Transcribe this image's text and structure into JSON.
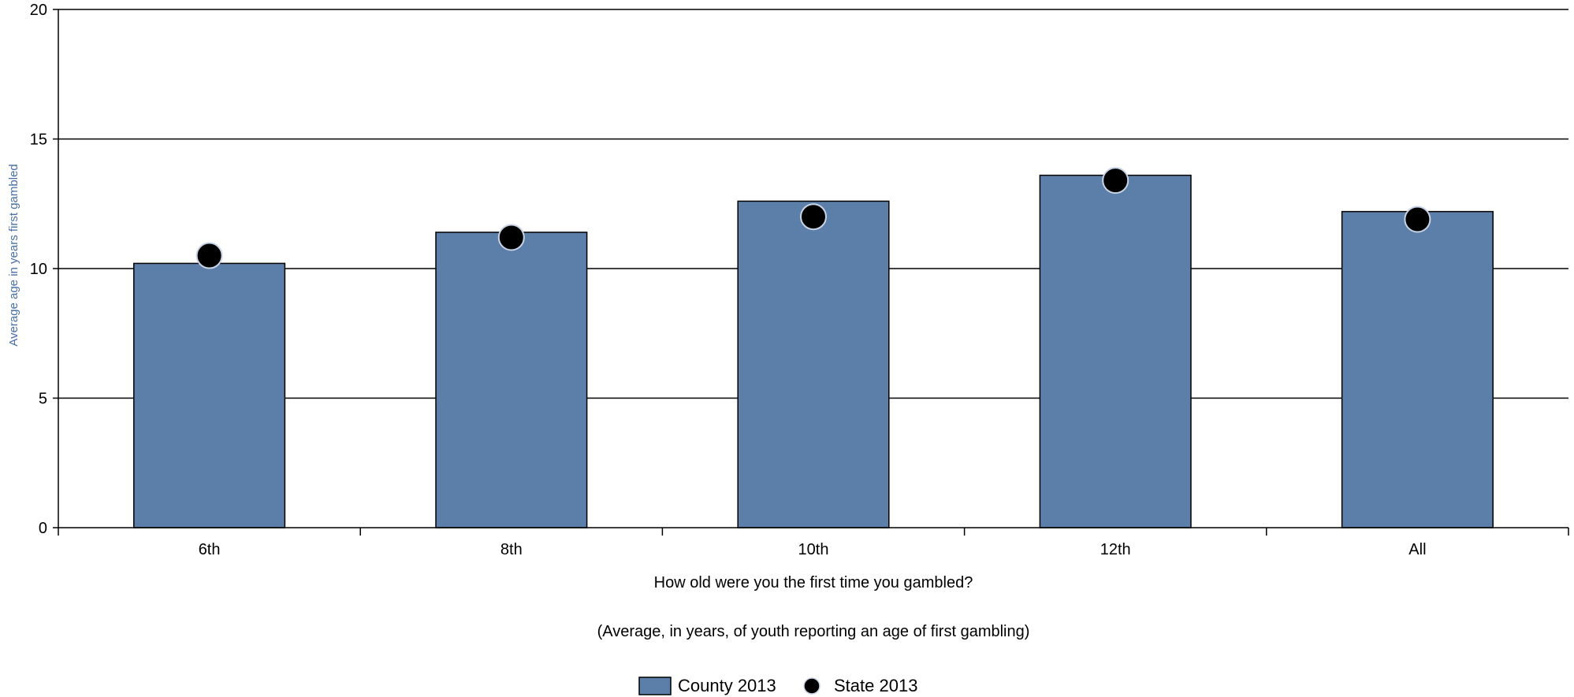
{
  "chart_data": {
    "type": "bar",
    "categories": [
      "6th",
      "8th",
      "10th",
      "12th",
      "All"
    ],
    "series": [
      {
        "name": "County 2013",
        "kind": "bar",
        "values": [
          10.2,
          11.4,
          12.6,
          13.6,
          12.2
        ],
        "color": "#5b7fa8"
      },
      {
        "name": "State 2013",
        "kind": "marker",
        "values": [
          10.5,
          11.2,
          12.0,
          13.4,
          11.9
        ],
        "color": "#000000"
      }
    ],
    "ylabel": "Average age in years first gambled",
    "xlabel": "How old were you the first time you gambled?",
    "subtitle": "(Average, in years, of youth reporting an age of first gambling)",
    "ylim": [
      0,
      20
    ],
    "yticks": [
      0,
      5,
      10,
      15,
      20
    ],
    "grid": true,
    "legend_position": "bottom-center"
  }
}
